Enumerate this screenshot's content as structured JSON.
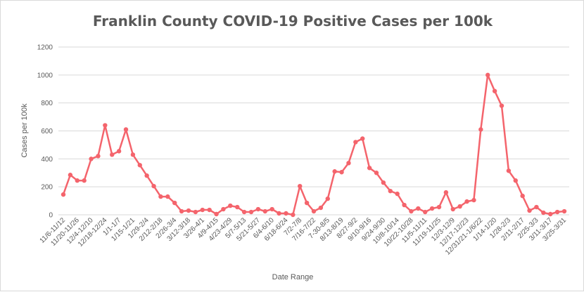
{
  "chart_data": {
    "type": "line",
    "title": "Franklin County COVID-19 Positive Cases per 100k",
    "xlabel": "Date Range",
    "ylabel": "Cases per 100k",
    "ylim": [
      0,
      1200
    ],
    "yticks": [
      0,
      200,
      400,
      600,
      800,
      1000,
      1200
    ],
    "grid": true,
    "colors": {
      "line": "#f4646c",
      "grid": "#d9d9d9",
      "text": "#595959"
    },
    "x_tick_labels": [
      "11/6-11/12",
      "11/20-11/26",
      "12/4-12/10",
      "12/18-12/24",
      "1/1-1/7",
      "1/15-1/21",
      "1/29-2/4",
      "2/12-2/18",
      "2/26-3/4",
      "3/12-3/18",
      "3/26-4/1",
      "4/9-4/15",
      "4/23-4/29",
      "5/7-5/13",
      "5/21-5/27",
      "6/4-6/10",
      "6/18-6/24",
      "7/2-7/8",
      "7/16-7/22",
      "7-30-8/5",
      "8/13-8/19",
      "8/27-9/2",
      "9/10-9/16",
      "9/24-9/30",
      "10/8-10/14",
      "10/22-10/28",
      "11/5-11/11",
      "11/19-11/25",
      "12/3-12/9",
      "12/17-12/23",
      "12/31/21-1/6/22",
      "1/14-1/20",
      "1/28-2/3",
      "2/11-2/17",
      "2/25-3/3",
      "3/11-3/17",
      "3/25-3/31"
    ],
    "series": [
      {
        "values": [
          145,
          285,
          245,
          245,
          400,
          420,
          640,
          430,
          455,
          610,
          430,
          355,
          280,
          205,
          130,
          130,
          85,
          25,
          30,
          20,
          35,
          35,
          5,
          40,
          65,
          55,
          20,
          20,
          40,
          25,
          40,
          10,
          10,
          0,
          205,
          85,
          25,
          50,
          115,
          310,
          305,
          370,
          520,
          545,
          335,
          300,
          230,
          170,
          150,
          70,
          25,
          45,
          20,
          45,
          55,
          160,
          40,
          60,
          95,
          105,
          610,
          1000,
          885,
          780,
          315,
          245,
          135,
          30,
          55,
          15,
          5,
          20,
          25
        ]
      }
    ]
  }
}
